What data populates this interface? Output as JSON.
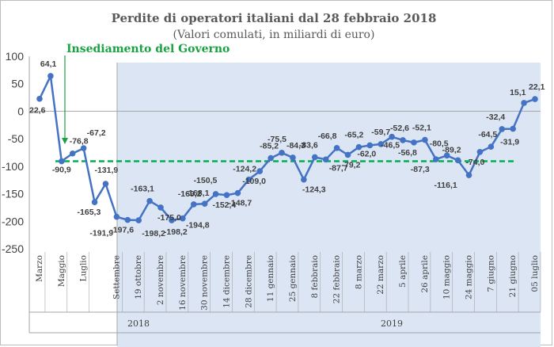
{
  "chart_data": {
    "type": "line",
    "title": "Perdite di operatori italiani  dal 28 febbraio 2018",
    "subtitle": "(Valori comulati, in miliardi di euro)",
    "annotation": "Insediamento del Governo",
    "ylim": [
      -250,
      100
    ],
    "yticks": [
      100,
      50,
      0,
      -50,
      -100,
      -150,
      -200,
      -250
    ],
    "x_tick_labels": [
      "Marzo",
      "Maggio",
      "Luglio",
      "Settembre",
      "19 ottobre",
      "2 novembre",
      "16 novembre",
      "30 novembre",
      "14 dicembre",
      "28 dicembre",
      "11 gennaio",
      "25 gennaio",
      "8 febbraio",
      "22 febbraio",
      "8 marzo",
      "22 marzo",
      "5 aprile",
      "26 aprile",
      "10 maggio",
      "24 maggio",
      "7 giugno",
      "21 giugno",
      "05 luglio"
    ],
    "years": [
      "2018",
      "2019"
    ],
    "series": [
      {
        "values": [
          22.6,
          64.1,
          -90.9,
          -76.8,
          -67.2,
          -165.3,
          -131.9,
          -191.9,
          -197.6,
          -198.2,
          -163.1,
          -175.0,
          -198.2,
          -194.8,
          -169.2,
          -168.1,
          -150.5,
          -152.4,
          -148.7,
          -124.2,
          -109.0,
          -85.2,
          -75.5,
          -84.3,
          -124.3,
          -83.6,
          -87.7,
          -66.8,
          -79.2,
          -65.2,
          -62.0,
          -59.7,
          -46.5,
          -52.6,
          -56.8,
          -52.1,
          -87.3,
          -80.5,
          -89.2,
          -116.1,
          -74.0,
          -64.5,
          -32.4,
          -31.9,
          15.1,
          22.1
        ],
        "data_labels": [
          "22,6",
          "64,1",
          "-90,9",
          "-76,8",
          "-67,2",
          "-165,3",
          "-131,9",
          "-191,9",
          "-197,6",
          "-198,2",
          "-163,1",
          "-175,0",
          "-198,2",
          "-194,8",
          "-169,2",
          "-168,1",
          "-150,5",
          "-152,4",
          "-148,7",
          "-124,2",
          "-109,0",
          "-85,2",
          "-75,5",
          "-84,3",
          "-124,3",
          "-83,6",
          "-87,7",
          "-66,8",
          "-79,2",
          "-65,2",
          "-62,0",
          "-59,7",
          "-46,5",
          "-52,6",
          "-56,8",
          "-52,1",
          "-87,3",
          "-80,5",
          "-89,2",
          "-116,1",
          "-74,0",
          "-64,5",
          "-32,4",
          "-31,9",
          "15,1",
          "22,1"
        ]
      }
    ],
    "reference_line": -90.9,
    "colors": {
      "line": "#4472c4",
      "reference": "#00b050",
      "annotation": "#1aa141",
      "shaded": "#dbe5f4",
      "grid": "#a6a6a6"
    },
    "grid": false,
    "legend": "none"
  }
}
